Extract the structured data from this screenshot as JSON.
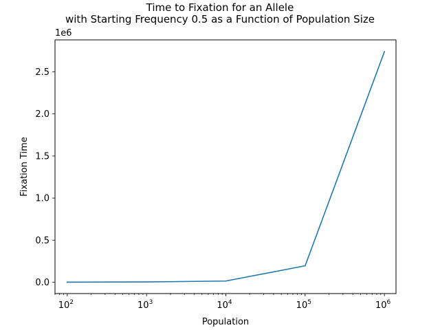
{
  "chart_data": {
    "type": "line",
    "title_lines": [
      "Time to Fixation for an Allele",
      "with Starting Frequency 0.5 as a Function of Population Size"
    ],
    "xlabel": "Population",
    "ylabel": "Fixation Time",
    "x_scale": "log",
    "xlim": [
      70,
      1400000
    ],
    "ylim": [
      -135000,
      2880000
    ],
    "y_offset_label": "1e6",
    "x_ticks": [
      {
        "value": 100,
        "base": "10",
        "exp": "2"
      },
      {
        "value": 1000,
        "base": "10",
        "exp": "3"
      },
      {
        "value": 10000,
        "base": "10",
        "exp": "4"
      },
      {
        "value": 100000,
        "base": "10",
        "exp": "5"
      },
      {
        "value": 1000000,
        "base": "10",
        "exp": "6"
      }
    ],
    "y_ticks": [
      {
        "value": 0,
        "label": "0.0"
      },
      {
        "value": 500000,
        "label": "0.5"
      },
      {
        "value": 1000000,
        "label": "1.0"
      },
      {
        "value": 1500000,
        "label": "1.5"
      },
      {
        "value": 2000000,
        "label": "2.0"
      },
      {
        "value": 2500000,
        "label": "2.5"
      }
    ],
    "grid": false,
    "legend": "none",
    "series": [
      {
        "color": "#1f77b4",
        "x": [
          100,
          1000,
          10000,
          100000,
          1000000
        ],
        "y": [
          300,
          3000,
          14000,
          195000,
          2740000
        ]
      }
    ]
  }
}
